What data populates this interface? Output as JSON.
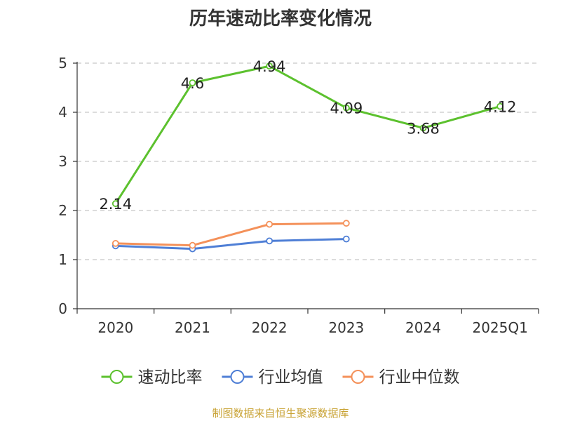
{
  "chart_data": {
    "type": "line",
    "title": "历年速动比率变化情况",
    "categories": [
      "2020",
      "2021",
      "2022",
      "2023",
      "2024",
      "2025Q1"
    ],
    "ylim": [
      0,
      5
    ],
    "yticks": [
      0,
      1,
      2,
      3,
      4,
      5
    ],
    "grid": true,
    "legend_position": "bottom",
    "series": [
      {
        "name": "速动比率",
        "values": [
          2.14,
          4.6,
          4.94,
          4.09,
          3.68,
          4.12
        ],
        "color": "#5cc12e",
        "labels": [
          "2.14",
          "4.6",
          "4.94",
          "4.09",
          "3.68",
          "4.12"
        ]
      },
      {
        "name": "行业均值",
        "values": [
          1.28,
          1.22,
          1.38,
          1.42,
          null,
          null
        ],
        "color": "#4f7fd6"
      },
      {
        "name": "行业中位数",
        "values": [
          1.33,
          1.29,
          1.72,
          1.74,
          null,
          null
        ],
        "color": "#f4915a"
      }
    ]
  },
  "footer": {
    "credit": "制图数据来自恒生聚源数据库"
  }
}
